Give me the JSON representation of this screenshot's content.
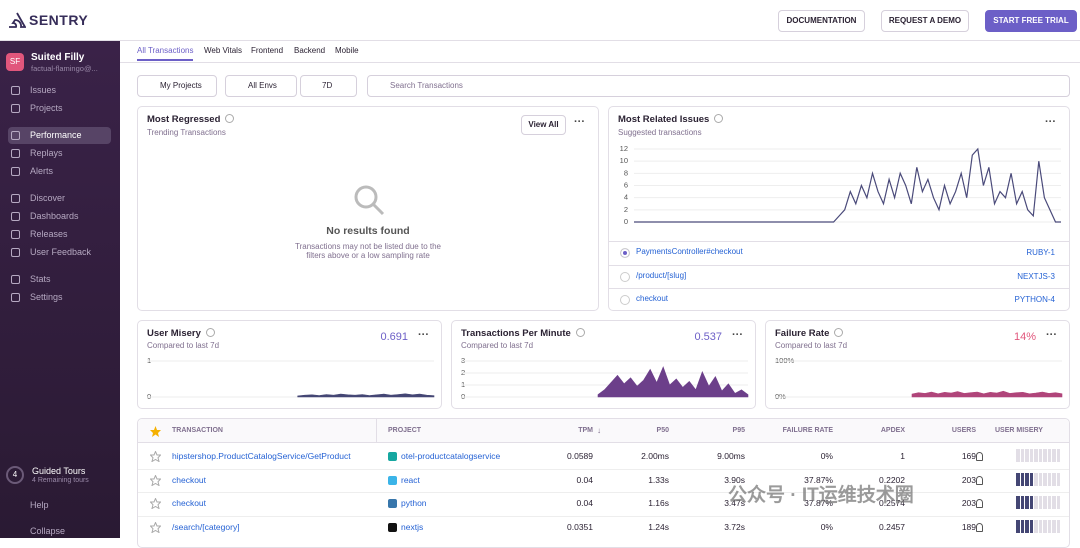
{
  "header": {
    "logo": "SENTRY",
    "buttons": [
      "DOCUMENTATION",
      "REQUEST A DEMO",
      "START FREE TRIAL"
    ]
  },
  "sidebar": {
    "avatar": "SF",
    "org": "Suited Filly",
    "user": "factual-flamingo@...",
    "nav": [
      [
        "Issues",
        "Projects"
      ],
      [
        "Performance",
        "Replays",
        "Alerts"
      ],
      [
        "Discover",
        "Dashboards",
        "Releases",
        "User Feedback"
      ],
      [
        "Stats",
        "Settings"
      ]
    ],
    "guided": {
      "count": "4",
      "title": "Guided Tours",
      "subtitle": "4 Remaining tours"
    },
    "help": "Help",
    "collapse": "Collapse"
  },
  "tabs": [
    "All Transactions",
    "Web Vitals",
    "Frontend",
    "Backend",
    "Mobile"
  ],
  "filters": {
    "projects": "My Projects",
    "envs": "All Envs",
    "period": "7D",
    "search": "Search Transactions"
  },
  "most_regressed": {
    "title": "Most Regressed",
    "subtitle": "Trending Transactions",
    "button": "View All",
    "empty_title": "No results found",
    "empty_text": "Transactions may not be listed due to the filters above or a low sampling rate"
  },
  "related_issues": {
    "title": "Most Related Issues",
    "subtitle": "Suggested transactions",
    "chart": {
      "type": "line",
      "color": "#4a4a7a",
      "ylim": [
        0,
        12
      ],
      "yticks": [
        0,
        2,
        4,
        6,
        8,
        10,
        12
      ],
      "values": [
        0,
        0,
        0,
        0,
        0,
        0,
        0,
        0,
        0,
        0,
        0,
        0,
        0,
        0,
        0,
        0,
        0,
        0,
        0,
        0,
        0,
        0,
        0,
        0,
        0,
        0,
        0,
        0,
        0,
        0,
        0,
        0,
        0,
        0,
        0,
        0,
        0,
        1,
        2,
        5,
        3,
        6,
        4,
        8,
        5,
        3,
        7,
        4,
        8,
        6,
        3,
        9,
        5,
        7,
        4,
        2,
        6,
        3,
        5,
        8,
        4,
        11,
        12,
        6,
        9,
        3,
        5,
        4,
        8,
        3,
        5,
        2,
        1,
        10,
        4,
        2,
        0,
        0
      ]
    },
    "rows": [
      {
        "name": "PaymentsController#checkout",
        "project": "RUBY-1"
      },
      {
        "name": "/product/[slug]",
        "project": "NEXTJS-3"
      },
      {
        "name": "checkout",
        "project": "PYTHON-4"
      }
    ]
  },
  "widgets": [
    {
      "title": "User Misery",
      "subtitle": "Compared to last 7d",
      "value": "0.691",
      "chart": {
        "type": "area",
        "color": "#444674",
        "ylim": [
          0,
          1
        ],
        "yticks": [
          0,
          1
        ],
        "values": [
          null,
          null,
          null,
          null,
          null,
          null,
          null,
          null,
          null,
          null,
          null,
          null,
          null,
          null,
          null,
          null,
          null,
          null,
          null,
          null,
          null,
          0.03,
          0.05,
          0.06,
          0.04,
          0.07,
          0.05,
          0.08,
          0.06,
          0.05,
          0.07,
          0.04,
          0.06,
          0.08,
          0.05,
          0.07,
          0.09,
          0.06,
          0.08,
          0.05,
          0.04
        ]
      }
    },
    {
      "title": "Transactions Per Minute",
      "subtitle": "Compared to last 7d",
      "value": "0.537",
      "chart": {
        "type": "area",
        "color": "#6c3f8a",
        "ylim": [
          0,
          3
        ],
        "yticks": [
          0,
          1,
          2,
          3
        ],
        "values": [
          null,
          null,
          null,
          null,
          null,
          null,
          null,
          null,
          null,
          null,
          null,
          null,
          null,
          null,
          null,
          null,
          null,
          null,
          null,
          null,
          null,
          0.2,
          0.6,
          1.2,
          1.8,
          1.1,
          1.6,
          0.9,
          1.4,
          2.3,
          1.2,
          2.5,
          1.0,
          1.5,
          0.8,
          1.3,
          0.6,
          2.1,
          0.9,
          1.7,
          0.5,
          1.1,
          0.3,
          0.6,
          0.2
        ]
      }
    },
    {
      "title": "Failure Rate",
      "subtitle": "Compared to last 7d",
      "value": "14%",
      "chart": {
        "type": "area",
        "color": "#b0457a",
        "ylim": [
          0,
          100
        ],
        "yticks": [
          {
            "value": 0,
            "label": "0%"
          },
          {
            "value": 100,
            "label": "100%"
          }
        ],
        "values": [
          null,
          null,
          null,
          null,
          null,
          null,
          null,
          null,
          null,
          null,
          null,
          null,
          null,
          null,
          null,
          null,
          null,
          null,
          null,
          null,
          null,
          8,
          12,
          10,
          14,
          9,
          13,
          11,
          15,
          10,
          12,
          14,
          9,
          13,
          11,
          16,
          10,
          12,
          13,
          9,
          11,
          14,
          10,
          12,
          9
        ]
      }
    }
  ],
  "table": {
    "columns": [
      "TRANSACTION",
      "PROJECT",
      "TPM",
      "P50",
      "P95",
      "FAILURE RATE",
      "APDEX",
      "USERS",
      "USER MISERY"
    ],
    "rows": [
      [
        "hipstershop.ProductCatalogService/GetProduct",
        "otel-productcatalogservice",
        "0.0589",
        "2.00ms",
        "9.00ms",
        "0%",
        "1",
        "169"
      ],
      [
        "checkout",
        "react",
        "0.04",
        "1.33s",
        "3.90s",
        "37.87%",
        "0.2202",
        "203"
      ],
      [
        "checkout",
        "python",
        "0.04",
        "1.16s",
        "3.47s",
        "37.87%",
        "0.2574",
        "203"
      ],
      [
        "/search/[category]",
        "nextjs",
        "0.0351",
        "1.24s",
        "3.72s",
        "0%",
        "0.2457",
        "189"
      ]
    ]
  },
  "watermark": "公众号 · IT运维技术圈"
}
